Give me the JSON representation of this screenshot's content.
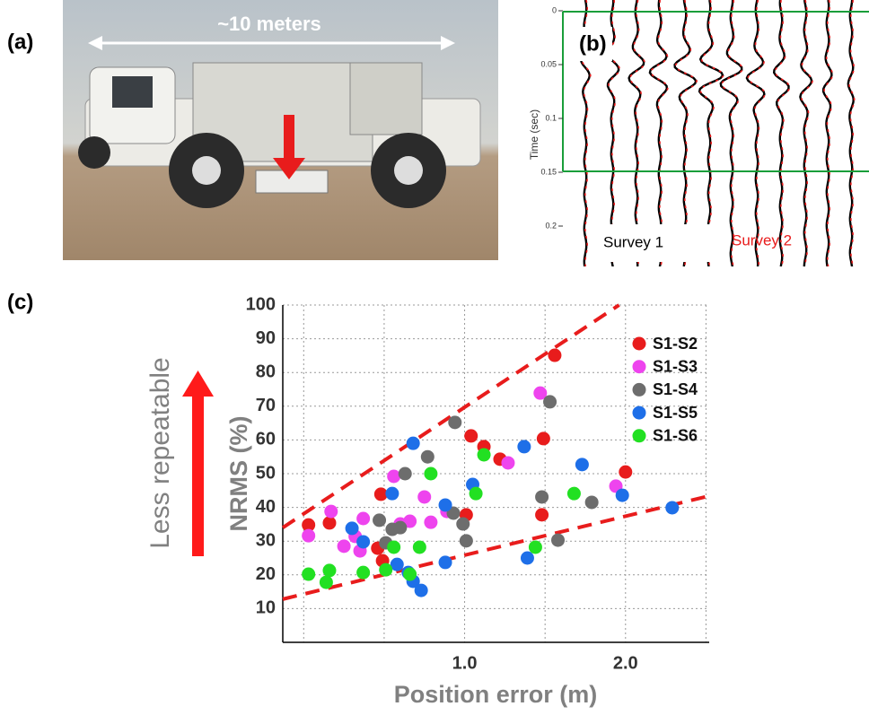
{
  "panels": {
    "a": {
      "label": "(a)",
      "annotation": "~10 meters"
    },
    "b": {
      "label": "(b)"
    },
    "c": {
      "label": "(c)",
      "side_annotation": "Less repeatable"
    }
  },
  "chart_data": [
    {
      "type": "wiggle",
      "ylabel": "Time (sec)",
      "ylim": [
        0,
        0.24
      ],
      "yticks": [
        0,
        0.05,
        0.1,
        0.15,
        0.2
      ],
      "series": [
        {
          "name": "Survey 1",
          "color": "#000000"
        },
        {
          "name": "Survey 2",
          "color": "#e81c1c"
        }
      ]
    },
    {
      "type": "scatter",
      "xlabel": "Position error (m)",
      "ylabel": "NRMS (%)",
      "xlim": [
        -0.13,
        2.52
      ],
      "ylim": [
        0,
        100
      ],
      "xticks": [
        {
          "value": 1,
          "label": "1.0"
        },
        {
          "value": 2,
          "label": "2.0"
        }
      ],
      "xgrid": [
        0,
        0.5,
        1,
        1.5,
        2,
        2.5
      ],
      "yticks": [
        10,
        20,
        30,
        40,
        50,
        60,
        70,
        80,
        90,
        100
      ],
      "grid": true,
      "legend": "upper right",
      "series": [
        {
          "name": "S1-S2",
          "color": "#e81c1c",
          "x": [
            0.03,
            0.16,
            0.48,
            0.46,
            0.49,
            1.04,
            1.12,
            1.22,
            1.01,
            1.49,
            1.48,
            1.56,
            2.0
          ],
          "y": [
            34.8,
            35.4,
            43.9,
            27.9,
            24.2,
            61.2,
            58,
            54.3,
            37.8,
            60.4,
            37.8,
            85.1,
            50.5
          ]
        },
        {
          "name": "S1-S3",
          "color": "#ee44ee",
          "x": [
            0.03,
            0.17,
            0.25,
            0.32,
            0.37,
            0.35,
            0.56,
            0.6,
            0.66,
            0.75,
            0.79,
            0.89,
            1.27,
            1.47,
            1.94
          ],
          "y": [
            31.6,
            38.8,
            28.5,
            31.4,
            36.7,
            27.1,
            49.2,
            35.1,
            35.9,
            43.1,
            35.6,
            38.8,
            53.2,
            73.9,
            46.3
          ]
        },
        {
          "name": "S1-S4",
          "color": "#6d6d6d",
          "x": [
            0.47,
            0.55,
            0.63,
            0.77,
            0.94,
            0.93,
            0.99,
            1.01,
            0.6,
            1.53,
            1.48,
            1.58,
            1.79,
            0.51
          ],
          "y": [
            36.2,
            33.5,
            50,
            55,
            65.2,
            38.3,
            35.1,
            30.1,
            34,
            71.3,
            43.1,
            30.3,
            41.5,
            29.5
          ]
        },
        {
          "name": "S1-S5",
          "color": "#1e6fe8",
          "x": [
            0.3,
            0.37,
            0.55,
            0.58,
            0.65,
            0.68,
            0.73,
            0.68,
            0.88,
            0.88,
            1.05,
            1.37,
            1.39,
            1.73,
            1.98,
            2.29
          ],
          "y": [
            33.8,
            29.8,
            44.1,
            23.1,
            20.7,
            18.1,
            15.4,
            59,
            23.7,
            40.7,
            46.8,
            58,
            25,
            52.7,
            43.6,
            39.9
          ]
        },
        {
          "name": "S1-S6",
          "color": "#22e022",
          "x": [
            0.03,
            0.16,
            0.14,
            0.37,
            0.51,
            0.56,
            0.66,
            0.72,
            0.79,
            1.07,
            1.12,
            1.44,
            1.68
          ],
          "y": [
            20.2,
            21.3,
            17.8,
            20.7,
            21.5,
            28.2,
            20.2,
            28.2,
            50,
            44.1,
            55.6,
            28.2,
            44.1
          ]
        }
      ],
      "trend_lines": [
        {
          "color": "#e81c1c",
          "x": [
            -0.13,
            1.96
          ],
          "y": [
            34,
            100
          ]
        },
        {
          "color": "#e81c1c",
          "x": [
            -0.13,
            2.52
          ],
          "y": [
            12.8,
            43.4
          ]
        }
      ]
    }
  ]
}
